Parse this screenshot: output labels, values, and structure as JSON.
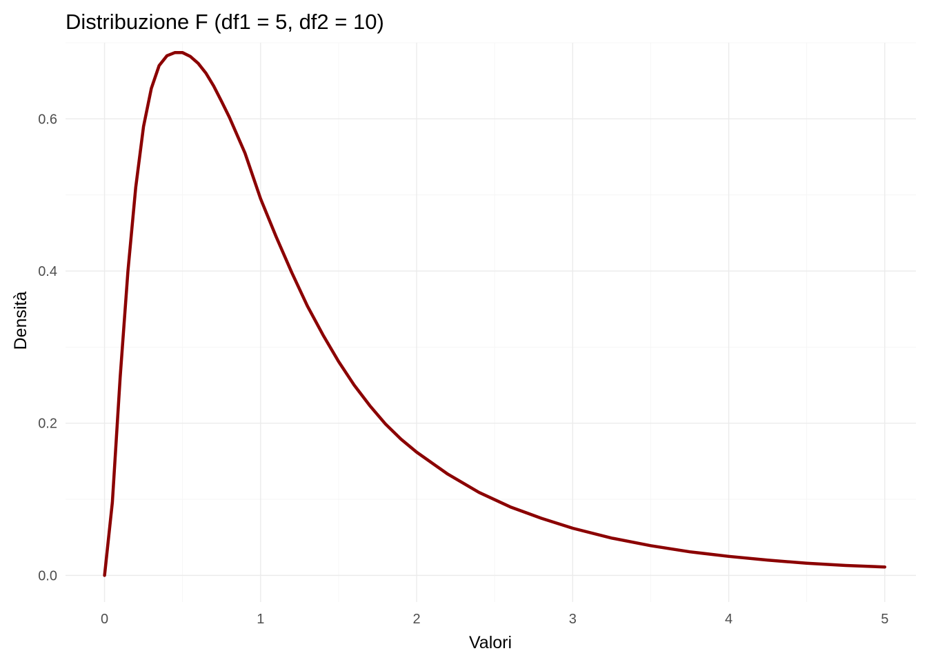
{
  "chart_data": {
    "type": "line",
    "title": "Distribuzione F (df1 = 5, df2 = 10)",
    "xlabel": "Valori",
    "ylabel": "Densità",
    "xlim": [
      -0.25,
      5.2
    ],
    "ylim": [
      -0.035,
      0.7
    ],
    "x_ticks": [
      0,
      1,
      2,
      3,
      4,
      5
    ],
    "x_tick_labels": [
      "0",
      "1",
      "2",
      "3",
      "4",
      "5"
    ],
    "y_ticks": [
      0.0,
      0.2,
      0.4,
      0.6
    ],
    "y_tick_labels": [
      "0.0",
      "0.2",
      "0.4",
      "0.6"
    ],
    "grid": true,
    "legend": "none",
    "line_color": "#8b0000",
    "series": [
      {
        "x": [
          0,
          0.05,
          0.1,
          0.15,
          0.2,
          0.25,
          0.3,
          0.35,
          0.4,
          0.45,
          0.5,
          0.55,
          0.6,
          0.65,
          0.7,
          0.75,
          0.8,
          0.9,
          1.0,
          1.1,
          1.2,
          1.3,
          1.4,
          1.5,
          1.6,
          1.7,
          1.8,
          1.9,
          2.0,
          2.2,
          2.4,
          2.6,
          2.8,
          3.0,
          3.25,
          3.5,
          3.75,
          4.0,
          4.25,
          4.5,
          4.75,
          5.0
        ],
        "y": [
          0,
          0.096,
          0.26,
          0.4,
          0.51,
          0.59,
          0.64,
          0.67,
          0.683,
          0.687,
          0.687,
          0.682,
          0.673,
          0.66,
          0.643,
          0.623,
          0.602,
          0.555,
          0.495,
          0.445,
          0.398,
          0.354,
          0.316,
          0.281,
          0.25,
          0.223,
          0.199,
          0.179,
          0.162,
          0.133,
          0.109,
          0.09,
          0.075,
          0.062,
          0.049,
          0.039,
          0.031,
          0.025,
          0.02,
          0.016,
          0.013,
          0.011
        ]
      }
    ]
  }
}
